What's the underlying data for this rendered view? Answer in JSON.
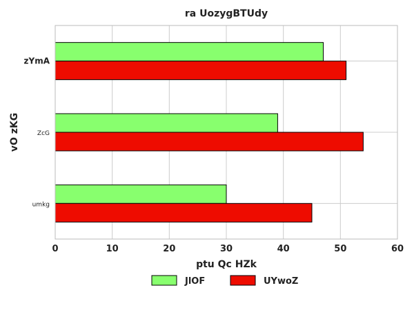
{
  "chart_data": {
    "type": "bar",
    "orientation": "horizontal",
    "title": "ra UozygBTUdy",
    "xlabel": "ptu Qc HZk",
    "ylabel": "vO zKG",
    "categories": [
      "zYmA",
      "ZcG",
      "umkg"
    ],
    "series": [
      {
        "name": "JlOF",
        "color": "#88ff6e",
        "values": [
          47,
          39,
          30
        ]
      },
      {
        "name": "UYwoZ",
        "color": "#ee0c00",
        "values": [
          51,
          54,
          45
        ]
      }
    ],
    "xlim": [
      0,
      60
    ],
    "xticks": [
      "0",
      "10",
      "20",
      "30",
      "40",
      "50",
      "60"
    ],
    "grid": true,
    "legend_position": "bottom-center"
  }
}
